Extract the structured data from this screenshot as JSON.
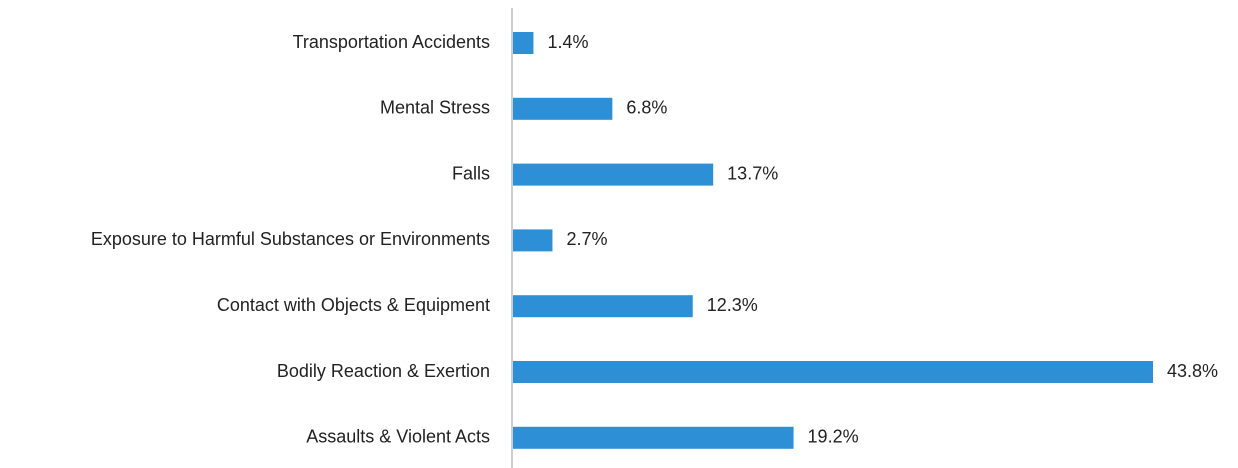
{
  "chart_data": {
    "type": "hbar",
    "categories": [
      "Transportation Accidents",
      "Mental Stress",
      "Falls",
      "Exposure to Harmful Substances or Environments",
      "Contact with Objects & Equipment",
      "Bodily Reaction & Exertion",
      "Assaults & Violent Acts"
    ],
    "values": [
      1.4,
      6.8,
      13.7,
      2.7,
      12.3,
      43.8,
      19.2
    ],
    "value_labels": [
      "1.4%",
      "6.8%",
      "13.7%",
      "2.7%",
      "12.3%",
      "43.8%",
      "19.2%"
    ],
    "color": "#2d8fd5"
  }
}
